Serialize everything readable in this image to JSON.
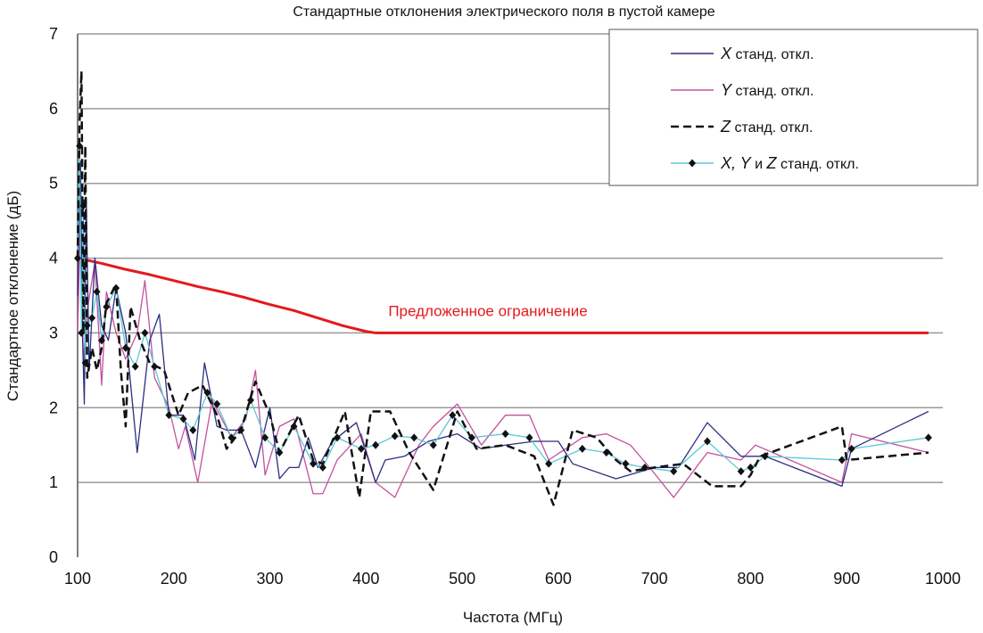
{
  "chart_data": {
    "type": "line",
    "title": "Стандартные отклонения электрического поля в пустой камере",
    "xlabel": "Частота (МГц)",
    "ylabel": "Стандартное отклонение (дБ)",
    "xlim": [
      100,
      1000
    ],
    "ylim": [
      0,
      7
    ],
    "xticks": [
      100,
      200,
      300,
      400,
      500,
      600,
      700,
      800,
      900,
      1000
    ],
    "yticks": [
      0,
      1,
      2,
      3,
      4,
      5,
      6,
      7
    ],
    "grid": "horizontal",
    "legend_position": "top-right",
    "annotation": {
      "text": "Предложенное ограничение",
      "x": 400,
      "y": 3.3
    },
    "series": [
      {
        "name": "X станд. откл.",
        "name_italic": "X",
        "name_rest": " станд. откл.",
        "color": "#2b2f7f",
        "style": "solid",
        "markers": false,
        "x": [
          100,
          103,
          105,
          107,
          109,
          112,
          118,
          125,
          132,
          140,
          150,
          162,
          175,
          185,
          195,
          210,
          222,
          232,
          245,
          255,
          270,
          285,
          300,
          310,
          320,
          330,
          340,
          350,
          365,
          390,
          410,
          420,
          440,
          465,
          495,
          520,
          545,
          575,
          600,
          615,
          660,
          700,
          725,
          755,
          790,
          815,
          895,
          905,
          985
        ],
        "y": [
          3.5,
          5.3,
          3.0,
          2.05,
          4.8,
          2.5,
          4.0,
          3.1,
          2.9,
          3.6,
          3.0,
          1.4,
          2.9,
          3.25,
          1.9,
          1.9,
          1.3,
          2.6,
          1.75,
          1.7,
          1.7,
          1.2,
          2.0,
          1.05,
          1.2,
          1.2,
          1.6,
          1.2,
          1.55,
          1.8,
          1.0,
          1.3,
          1.35,
          1.55,
          1.65,
          1.45,
          1.5,
          1.55,
          1.55,
          1.25,
          1.05,
          1.2,
          1.2,
          1.8,
          1.35,
          1.35,
          0.95,
          1.45,
          1.95
        ]
      },
      {
        "name": "Y станд. откл.",
        "name_italic": "Y",
        "name_rest": " станд. откл.",
        "color": "#c5509f",
        "style": "solid",
        "markers": false,
        "x": [
          100,
          103,
          106,
          110,
          118,
          125,
          130,
          140,
          150,
          162,
          170,
          180,
          195,
          205,
          212,
          225,
          240,
          260,
          275,
          285,
          295,
          310,
          325,
          345,
          355,
          370,
          395,
          410,
          430,
          455,
          470,
          495,
          520,
          545,
          570,
          590,
          625,
          650,
          675,
          695,
          720,
          755,
          790,
          805,
          895,
          905,
          985
        ],
        "y": [
          3.0,
          4.5,
          2.6,
          3.3,
          3.95,
          2.3,
          3.55,
          3.0,
          2.65,
          3.0,
          3.7,
          2.4,
          2.0,
          1.45,
          1.75,
          1.0,
          2.1,
          1.6,
          1.85,
          2.5,
          1.1,
          1.75,
          1.85,
          0.85,
          0.85,
          1.3,
          1.65,
          1.0,
          0.8,
          1.5,
          1.75,
          2.05,
          1.5,
          1.9,
          1.9,
          1.3,
          1.6,
          1.65,
          1.5,
          1.2,
          0.8,
          1.4,
          1.3,
          1.5,
          1.0,
          1.65,
          1.4
        ]
      },
      {
        "name": "Z станд. откл.",
        "name_italic": "Z",
        "name_rest": " станд. откл.",
        "color": "#111111",
        "style": "dashed",
        "markers": false,
        "x": [
          100,
          102,
          104,
          106,
          108,
          110,
          115,
          120,
          125,
          130,
          140,
          145,
          150,
          155,
          165,
          175,
          190,
          205,
          215,
          230,
          245,
          255,
          270,
          285,
          300,
          310,
          330,
          345,
          355,
          378,
          393,
          405,
          425,
          445,
          470,
          495,
          515,
          545,
          575,
          595,
          615,
          640,
          660,
          675,
          700,
          730,
          760,
          790,
          800,
          810,
          895,
          900,
          985
        ],
        "y": [
          4.0,
          5.8,
          6.5,
          3.0,
          5.5,
          2.4,
          2.8,
          2.5,
          2.8,
          3.4,
          3.65,
          2.5,
          1.75,
          3.35,
          2.9,
          2.6,
          2.5,
          1.9,
          2.2,
          2.3,
          1.9,
          1.45,
          1.7,
          2.35,
          1.9,
          1.4,
          1.9,
          1.3,
          1.25,
          1.95,
          0.8,
          1.95,
          1.95,
          1.4,
          0.9,
          1.95,
          1.45,
          1.5,
          1.35,
          0.7,
          1.7,
          1.6,
          1.3,
          1.15,
          1.2,
          1.25,
          0.95,
          0.95,
          1.1,
          1.35,
          1.75,
          1.3,
          1.4
        ]
      },
      {
        "name": "X, Y и Z станд. откл.",
        "name_italic": "X, Y",
        "name_mid": " и ",
        "name_italic2": "Z",
        "name_rest": " станд. откл.",
        "color": "#5bc8d6",
        "style": "solid",
        "markers": true,
        "x": [
          100,
          102,
          104,
          106,
          108,
          110,
          115,
          120,
          125,
          130,
          140,
          150,
          160,
          170,
          180,
          195,
          210,
          220,
          235,
          245,
          260,
          270,
          280,
          295,
          310,
          325,
          345,
          355,
          370,
          395,
          410,
          430,
          450,
          470,
          490,
          510,
          545,
          570,
          590,
          625,
          650,
          670,
          690,
          720,
          755,
          790,
          800,
          815,
          895,
          905,
          985
        ],
        "y": [
          4.0,
          5.5,
          3.0,
          4.7,
          2.6,
          3.1,
          3.2,
          3.55,
          2.9,
          3.35,
          3.6,
          2.8,
          2.55,
          3.0,
          2.55,
          1.9,
          1.85,
          1.7,
          2.2,
          2.05,
          1.6,
          1.7,
          2.1,
          1.6,
          1.4,
          1.75,
          1.25,
          1.2,
          1.6,
          1.45,
          1.5,
          1.62,
          1.6,
          1.5,
          1.9,
          1.6,
          1.65,
          1.6,
          1.25,
          1.45,
          1.4,
          1.25,
          1.2,
          1.15,
          1.55,
          1.15,
          1.2,
          1.35,
          1.3,
          1.45,
          1.6
        ]
      },
      {
        "name": "Предложенное ограничение",
        "color": "#e3191e",
        "style": "solid",
        "markers": false,
        "in_legend": false,
        "x": [
          100,
          125,
          150,
          175,
          200,
          225,
          250,
          275,
          300,
          325,
          350,
          375,
          400,
          410,
          985
        ],
        "y": [
          4.0,
          3.93,
          3.85,
          3.78,
          3.7,
          3.62,
          3.55,
          3.47,
          3.38,
          3.3,
          3.2,
          3.1,
          3.02,
          3.0,
          3.0
        ]
      }
    ]
  }
}
